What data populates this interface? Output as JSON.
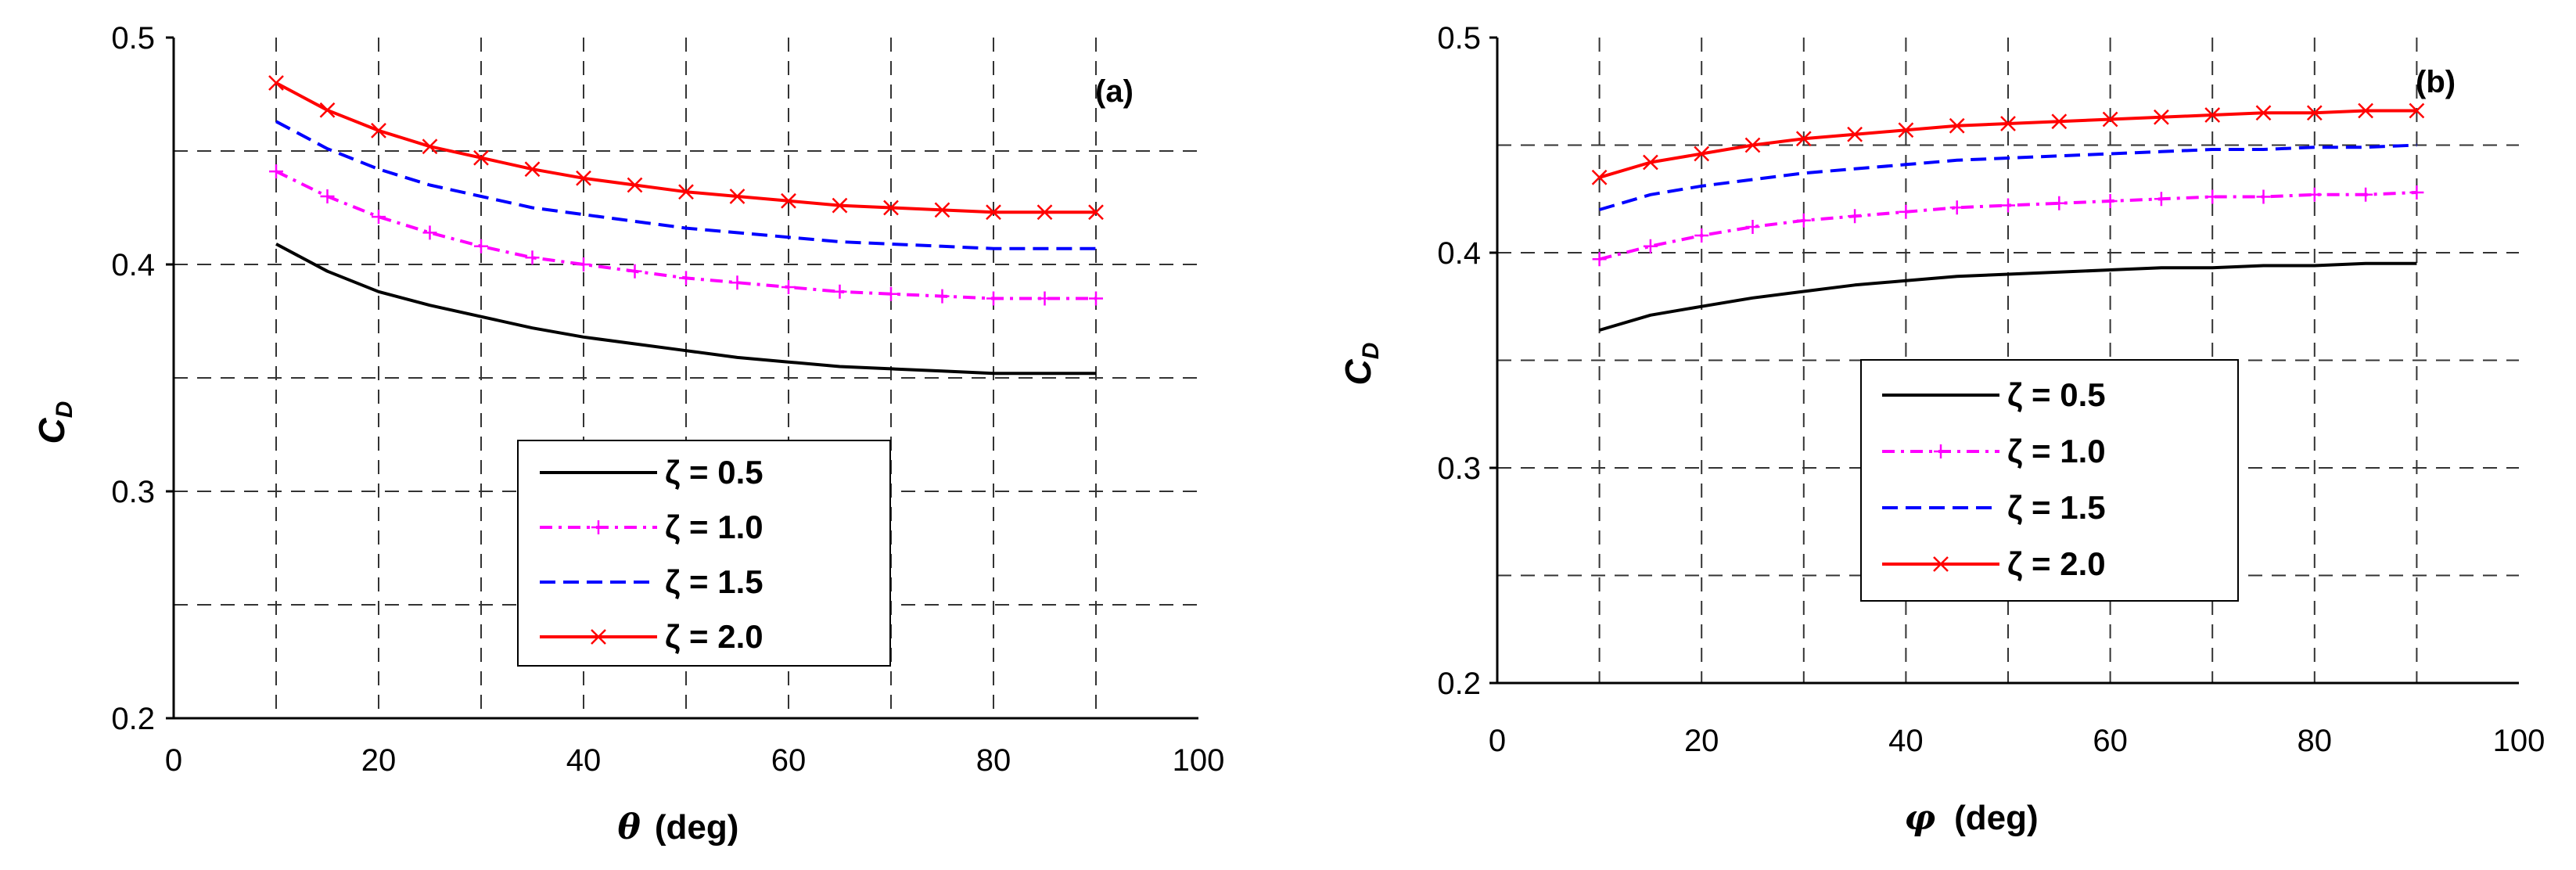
{
  "chart_data": [
    {
      "type": "line",
      "panel_label": "(a)",
      "xlabel_symbol": "θ",
      "xlabel_unit": "(deg)",
      "ylabel_main": "C",
      "ylabel_sub": "D",
      "xlim": [
        0,
        100
      ],
      "ylim": [
        0.2,
        0.5
      ],
      "xticks": [
        0,
        20,
        40,
        60,
        80,
        100
      ],
      "yticks": [
        0.2,
        0.3,
        0.4,
        0.5
      ],
      "grid": true,
      "legend_position": "lower-center",
      "x": [
        10,
        15,
        20,
        25,
        30,
        35,
        40,
        45,
        50,
        55,
        60,
        65,
        70,
        75,
        80,
        85,
        90
      ],
      "series": [
        {
          "name": "ζ = 0.5",
          "color": "#000000",
          "style": "solid",
          "marker": "none",
          "values": [
            0.409,
            0.397,
            0.388,
            0.382,
            0.377,
            0.372,
            0.368,
            0.365,
            0.362,
            0.359,
            0.357,
            0.355,
            0.354,
            0.353,
            0.352,
            0.352,
            0.352
          ]
        },
        {
          "name": "ζ = 1.0",
          "color": "#ff00ff",
          "style": "dashdot",
          "marker": "plus",
          "values": [
            0.441,
            0.43,
            0.421,
            0.414,
            0.408,
            0.403,
            0.4,
            0.397,
            0.394,
            0.392,
            0.39,
            0.388,
            0.387,
            0.386,
            0.385,
            0.385,
            0.385
          ]
        },
        {
          "name": "ζ = 1.5",
          "color": "#0000ff",
          "style": "dashed",
          "marker": "none",
          "values": [
            0.463,
            0.451,
            0.442,
            0.435,
            0.43,
            0.425,
            0.422,
            0.419,
            0.416,
            0.414,
            0.412,
            0.41,
            0.409,
            0.408,
            0.407,
            0.407,
            0.407
          ]
        },
        {
          "name": "ζ = 2.0",
          "color": "#ff0000",
          "style": "solid",
          "marker": "cross",
          "values": [
            0.48,
            0.468,
            0.459,
            0.452,
            0.447,
            0.442,
            0.438,
            0.435,
            0.432,
            0.43,
            0.428,
            0.426,
            0.425,
            0.424,
            0.423,
            0.423,
            0.423
          ]
        }
      ]
    },
    {
      "type": "line",
      "panel_label": "(b)",
      "xlabel_symbol": "φ",
      "xlabel_unit": "(deg)",
      "ylabel_main": "C",
      "ylabel_sub": "D",
      "xlim": [
        0,
        100
      ],
      "ylim": [
        0.2,
        0.5
      ],
      "xticks": [
        0,
        20,
        40,
        60,
        80,
        100
      ],
      "yticks": [
        0.2,
        0.3,
        0.4,
        0.5
      ],
      "grid": true,
      "legend_position": "lower-center",
      "x": [
        10,
        15,
        20,
        25,
        30,
        35,
        40,
        45,
        50,
        55,
        60,
        65,
        70,
        75,
        80,
        85,
        90
      ],
      "series": [
        {
          "name": "ζ = 0.5",
          "color": "#000000",
          "style": "solid",
          "marker": "none",
          "values": [
            0.364,
            0.371,
            0.375,
            0.379,
            0.382,
            0.385,
            0.387,
            0.389,
            0.39,
            0.391,
            0.392,
            0.393,
            0.393,
            0.394,
            0.394,
            0.395,
            0.395
          ]
        },
        {
          "name": "ζ = 1.0",
          "color": "#ff00ff",
          "style": "dashdot",
          "marker": "plus",
          "values": [
            0.397,
            0.403,
            0.408,
            0.412,
            0.415,
            0.417,
            0.419,
            0.421,
            0.422,
            0.423,
            0.424,
            0.425,
            0.426,
            0.426,
            0.427,
            0.427,
            0.428
          ]
        },
        {
          "name": "ζ = 1.5",
          "color": "#0000ff",
          "style": "dashed",
          "marker": "none",
          "values": [
            0.42,
            0.427,
            0.431,
            0.434,
            0.437,
            0.439,
            0.441,
            0.443,
            0.444,
            0.445,
            0.446,
            0.447,
            0.448,
            0.448,
            0.449,
            0.449,
            0.45
          ]
        },
        {
          "name": "ζ = 2.0",
          "color": "#ff0000",
          "style": "solid",
          "marker": "cross",
          "values": [
            0.435,
            0.442,
            0.446,
            0.45,
            0.453,
            0.455,
            0.457,
            0.459,
            0.46,
            0.461,
            0.462,
            0.463,
            0.464,
            0.465,
            0.465,
            0.466,
            0.466
          ]
        }
      ]
    }
  ]
}
